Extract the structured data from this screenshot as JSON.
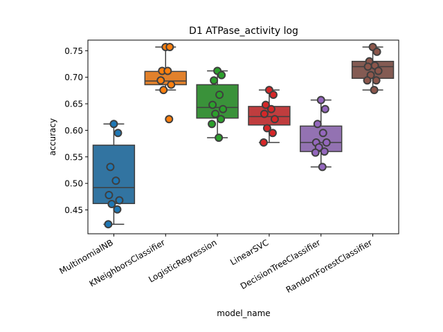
{
  "chart_data": {
    "type": "box",
    "title": "D1 ATPase_activity log",
    "xlabel": "model_name",
    "ylabel": "accuracy",
    "ylim": [
      0.405,
      0.77
    ],
    "yticks": [
      0.45,
      0.5,
      0.55,
      0.6,
      0.65,
      0.7,
      0.75
    ],
    "ytick_labels": [
      "0.45",
      "0.50",
      "0.55",
      "0.60",
      "0.65",
      "0.70",
      "0.75"
    ],
    "grid": false,
    "categories": [
      "MultinomialNB",
      "KNeighborsClassifier",
      "LogisticRegression",
      "LinearSVC",
      "DecisionTreeClassifier",
      "RandomForestClassifier"
    ],
    "series": [
      {
        "color": "#1f77b4",
        "box_color": "#3274a1",
        "box": {
          "whislo": 0.423,
          "q1": 0.462,
          "med": 0.492,
          "q3": 0.572,
          "whishi": 0.612
        },
        "points": [
          0.612,
          0.595,
          0.531,
          0.505,
          0.478,
          0.468,
          0.461,
          0.451,
          0.423
        ]
      },
      {
        "color": "#ff7f0e",
        "box_color": "#e1812c",
        "box": {
          "whislo": 0.676,
          "q1": 0.686,
          "med": 0.693,
          "q3": 0.711,
          "whishi": 0.757
        },
        "points": [
          0.757,
          0.757,
          0.712,
          0.712,
          0.694,
          0.686,
          0.676,
          0.621
        ]
      },
      {
        "color": "#2ca02c",
        "box_color": "#3a923a",
        "box": {
          "whislo": 0.586,
          "q1": 0.623,
          "med": 0.643,
          "q3": 0.686,
          "whishi": 0.712
        },
        "points": [
          0.712,
          0.704,
          0.694,
          0.667,
          0.648,
          0.64,
          0.631,
          0.621,
          0.612,
          0.586
        ]
      },
      {
        "color": "#d62728",
        "box_color": "#c03d3e",
        "box": {
          "whislo": 0.577,
          "q1": 0.61,
          "med": 0.626,
          "q3": 0.645,
          "whishi": 0.676
        },
        "points": [
          0.676,
          0.667,
          0.648,
          0.64,
          0.631,
          0.621,
          0.604,
          0.595,
          0.577
        ]
      },
      {
        "color": "#9467bd",
        "box_color": "#9372b2",
        "box": {
          "whislo": 0.531,
          "q1": 0.56,
          "med": 0.577,
          "q3": 0.608,
          "whishi": 0.657
        },
        "points": [
          0.657,
          0.64,
          0.612,
          0.595,
          0.577,
          0.577,
          0.568,
          0.56,
          0.558,
          0.531
        ]
      },
      {
        "color": "#8c564b",
        "box_color": "#845b53",
        "box": {
          "whislo": 0.676,
          "q1": 0.698,
          "med": 0.72,
          "q3": 0.73,
          "whishi": 0.757
        },
        "points": [
          0.757,
          0.748,
          0.73,
          0.722,
          0.72,
          0.712,
          0.704,
          0.694,
          0.694,
          0.676
        ]
      }
    ]
  }
}
